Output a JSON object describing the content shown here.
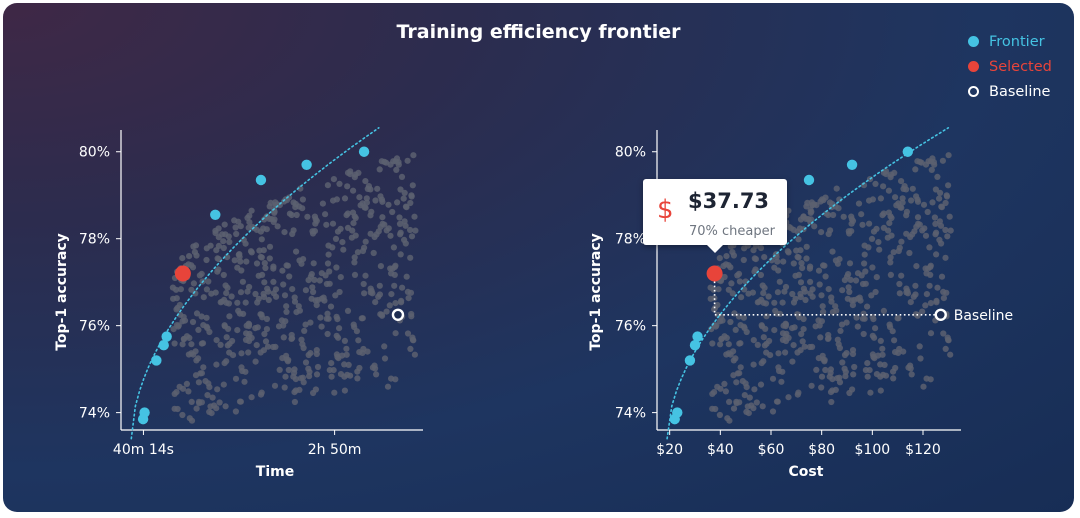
{
  "title": "Training efficiency frontier",
  "colors": {
    "frontier": "#45c3e3",
    "selected": "#e8443a",
    "baseline": "#ffffff",
    "cloud": "#5c6070",
    "axis": "#ffffff"
  },
  "legend": [
    {
      "label": "Frontier",
      "marker": "filled",
      "color": "#45c3e3"
    },
    {
      "label": "Selected",
      "marker": "filled",
      "color": "#e8443a"
    },
    {
      "label": "Baseline",
      "marker": "ring",
      "color": "#ffffff"
    }
  ],
  "tooltip": {
    "icon": "dollar-icon",
    "icon_glyph": "$",
    "value": "$37.73",
    "subtitle": "70% cheaper"
  },
  "baseline_annotation": "Baseline",
  "chart_data": [
    {
      "type": "scatter",
      "xlabel": "Time",
      "ylabel": "Top-1 accuracy",
      "x_unit": "minutes",
      "xlim": [
        25,
        230
      ],
      "ylim": [
        73.6,
        80.5
      ],
      "x_ticks": [
        {
          "value": 40.23,
          "label": "40m 14s"
        },
        {
          "value": 170,
          "label": "2h 50m"
        }
      ],
      "y_ticks": [
        {
          "value": 74,
          "label": "74%"
        },
        {
          "value": 76,
          "label": "76%"
        },
        {
          "value": 78,
          "label": "78%"
        },
        {
          "value": 80,
          "label": "80%"
        }
      ],
      "frontier": [
        [
          40,
          73.85
        ],
        [
          41,
          74.0
        ],
        [
          49,
          75.2
        ],
        [
          54,
          75.55
        ],
        [
          56,
          75.75
        ],
        [
          89,
          78.55
        ],
        [
          120,
          79.35
        ],
        [
          151,
          79.7
        ],
        [
          190,
          80.0
        ]
      ],
      "selected": [
        [
          67,
          77.2
        ]
      ],
      "baseline": [
        [
          213,
          76.25
        ]
      ],
      "frontier_curve": {
        "x": [
          32,
          200
        ],
        "y_at_x": [
          73.4,
          80.55
        ]
      },
      "cloud": {
        "x_range": [
          60,
          225
        ],
        "y_range": [
          73.7,
          80.0
        ],
        "count": 600
      }
    },
    {
      "type": "scatter",
      "xlabel": "Cost",
      "ylabel": "Top-1 accuracy",
      "x_unit": "USD",
      "xlim": [
        15,
        135
      ],
      "ylim": [
        73.6,
        80.5
      ],
      "x_ticks": [
        {
          "value": 20,
          "label": "$20"
        },
        {
          "value": 40,
          "label": "$40"
        },
        {
          "value": 60,
          "label": "$60"
        },
        {
          "value": 80,
          "label": "$80"
        },
        {
          "value": 100,
          "label": "$100"
        },
        {
          "value": 120,
          "label": "$120"
        }
      ],
      "y_ticks": [
        {
          "value": 74,
          "label": "74%"
        },
        {
          "value": 76,
          "label": "76%"
        },
        {
          "value": 78,
          "label": "78%"
        },
        {
          "value": 80,
          "label": "80%"
        }
      ],
      "frontier": [
        [
          22,
          73.85
        ],
        [
          23,
          74.0
        ],
        [
          28,
          75.2
        ],
        [
          30,
          75.55
        ],
        [
          31,
          75.75
        ],
        [
          75,
          79.35
        ],
        [
          92,
          79.7
        ],
        [
          114,
          80.0
        ]
      ],
      "selected": [
        [
          37.73,
          77.2
        ]
      ],
      "baseline": [
        [
          127,
          76.25
        ]
      ],
      "frontier_curve": {
        "x": [
          19,
          130
        ],
        "y_at_x": [
          73.4,
          80.55
        ]
      },
      "cloud": {
        "x_range": [
          36,
          131
        ],
        "y_range": [
          73.7,
          80.0
        ],
        "count": 600
      }
    }
  ]
}
